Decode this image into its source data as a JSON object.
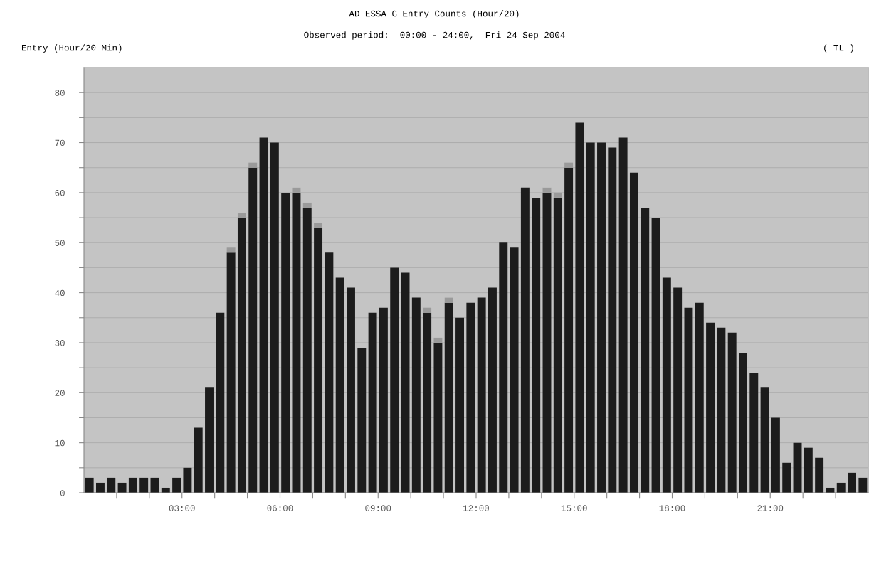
{
  "chart_data": {
    "type": "bar",
    "stacked": true,
    "title": "AD ESSA G Entry Counts (Hour/20)",
    "subtitle": "Observed period:  00:00 - 24:00,  Fri 24 Sep 2004",
    "ylabel": "Entry (Hour/20 Min)",
    "annotations": [
      "( TL )"
    ],
    "x": [
      "2004-09-24T00:10",
      "2004-09-24T00:30",
      "2004-09-24T00:50",
      "2004-09-24T01:10",
      "2004-09-24T01:30",
      "2004-09-24T01:50",
      "2004-09-24T02:10",
      "2004-09-24T02:30",
      "2004-09-24T02:50",
      "2004-09-24T03:10",
      "2004-09-24T03:30",
      "2004-09-24T03:50",
      "2004-09-24T04:10",
      "2004-09-24T04:30",
      "2004-09-24T04:50",
      "2004-09-24T05:10",
      "2004-09-24T05:30",
      "2004-09-24T05:50",
      "2004-09-24T06:10",
      "2004-09-24T06:30",
      "2004-09-24T06:50",
      "2004-09-24T07:10",
      "2004-09-24T07:30",
      "2004-09-24T07:50",
      "2004-09-24T08:10",
      "2004-09-24T08:30",
      "2004-09-24T08:50",
      "2004-09-24T09:10",
      "2004-09-24T09:30",
      "2004-09-24T09:50",
      "2004-09-24T10:10",
      "2004-09-24T10:30",
      "2004-09-24T10:50",
      "2004-09-24T11:10",
      "2004-09-24T11:30",
      "2004-09-24T11:50",
      "2004-09-24T12:10",
      "2004-09-24T12:30",
      "2004-09-24T12:50",
      "2004-09-24T13:10",
      "2004-09-24T13:30",
      "2004-09-24T13:50",
      "2004-09-24T14:10",
      "2004-09-24T14:30",
      "2004-09-24T14:50",
      "2004-09-24T15:10",
      "2004-09-24T15:30",
      "2004-09-24T15:50",
      "2004-09-24T16:10",
      "2004-09-24T16:30",
      "2004-09-24T16:50",
      "2004-09-24T17:10",
      "2004-09-24T17:30",
      "2004-09-24T17:50",
      "2004-09-24T18:10",
      "2004-09-24T18:30",
      "2004-09-24T18:50",
      "2004-09-24T19:10",
      "2004-09-24T19:30",
      "2004-09-24T19:50",
      "2004-09-24T20:10",
      "2004-09-24T20:30",
      "2004-09-24T20:50",
      "2004-09-24T21:10",
      "2004-09-24T21:30",
      "2004-09-24T21:50",
      "2004-09-24T22:10",
      "2004-09-24T22:30",
      "2004-09-24T22:50",
      "2004-09-24T23:10",
      "2004-09-24T23:30",
      "2004-09-24T23:50"
    ],
    "series": [
      {
        "color": "#1c1c1c",
        "values": [
          3,
          2,
          3,
          2,
          3,
          3,
          3,
          1,
          3,
          5,
          13,
          21,
          36,
          48,
          55,
          65,
          71,
          70,
          60,
          60,
          57,
          53,
          48,
          43,
          41,
          29,
          36,
          37,
          45,
          44,
          39,
          36,
          30,
          38,
          35,
          38,
          39,
          41,
          50,
          49,
          61,
          59,
          60,
          59,
          65,
          74,
          70,
          70,
          69,
          71,
          64,
          57,
          55,
          43,
          41,
          37,
          38,
          34,
          33,
          32,
          28,
          24,
          21,
          15,
          6,
          10,
          9,
          7,
          1,
          2,
          4,
          3
        ]
      },
      {
        "color": "#9a9a9a",
        "values": [
          null,
          null,
          null,
          null,
          null,
          null,
          null,
          null,
          null,
          null,
          null,
          null,
          null,
          1,
          1,
          1,
          null,
          null,
          null,
          1,
          1,
          1,
          null,
          null,
          null,
          null,
          null,
          null,
          null,
          null,
          null,
          1,
          1,
          1,
          null,
          null,
          null,
          null,
          null,
          null,
          null,
          null,
          1,
          1,
          1,
          null,
          null,
          null,
          null,
          null,
          null,
          null,
          null,
          null,
          null,
          null,
          null,
          null,
          null,
          null,
          null,
          null,
          null,
          null,
          null,
          null,
          null,
          null,
          null,
          null,
          null,
          null
        ]
      }
    ],
    "xlim": [
      "2004-09-24T00:00",
      "2004-09-25T00:00"
    ],
    "xticks": [
      {
        "value": "2004-09-24T01:00",
        "label": null
      },
      {
        "value": "2004-09-24T02:00",
        "label": null
      },
      {
        "value": "2004-09-24T03:00",
        "label": "03:00"
      },
      {
        "value": "2004-09-24T04:00",
        "label": null
      },
      {
        "value": "2004-09-24T05:00",
        "label": null
      },
      {
        "value": "2004-09-24T06:00",
        "label": "06:00"
      },
      {
        "value": "2004-09-24T07:00",
        "label": null
      },
      {
        "value": "2004-09-24T08:00",
        "label": null
      },
      {
        "value": "2004-09-24T09:00",
        "label": "09:00"
      },
      {
        "value": "2004-09-24T10:00",
        "label": null
      },
      {
        "value": "2004-09-24T11:00",
        "label": null
      },
      {
        "value": "2004-09-24T12:00",
        "label": "12:00"
      },
      {
        "value": "2004-09-24T13:00",
        "label": null
      },
      {
        "value": "2004-09-24T14:00",
        "label": null
      },
      {
        "value": "2004-09-24T15:00",
        "label": "15:00"
      },
      {
        "value": "2004-09-24T16:00",
        "label": null
      },
      {
        "value": "2004-09-24T17:00",
        "label": null
      },
      {
        "value": "2004-09-24T18:00",
        "label": "18:00"
      },
      {
        "value": "2004-09-24T19:00",
        "label": null
      },
      {
        "value": "2004-09-24T20:00",
        "label": null
      },
      {
        "value": "2004-09-24T21:00",
        "label": "21:00"
      },
      {
        "value": "2004-09-24T22:00",
        "label": null
      },
      {
        "value": "2004-09-24T23:00",
        "label": null
      }
    ],
    "ylim": [
      0,
      85
    ],
    "yticks": [
      0,
      {
        "value": 5,
        "label": null
      },
      10,
      {
        "value": 15,
        "label": null
      },
      20,
      {
        "value": 25,
        "label": null
      },
      30,
      {
        "value": 35,
        "label": null
      },
      40,
      {
        "value": 45,
        "label": null
      },
      50,
      {
        "value": 55,
        "label": null
      },
      60,
      {
        "value": 65,
        "label": null
      },
      70,
      {
        "value": 75,
        "label": null
      },
      80
    ],
    "grid": "y"
  }
}
